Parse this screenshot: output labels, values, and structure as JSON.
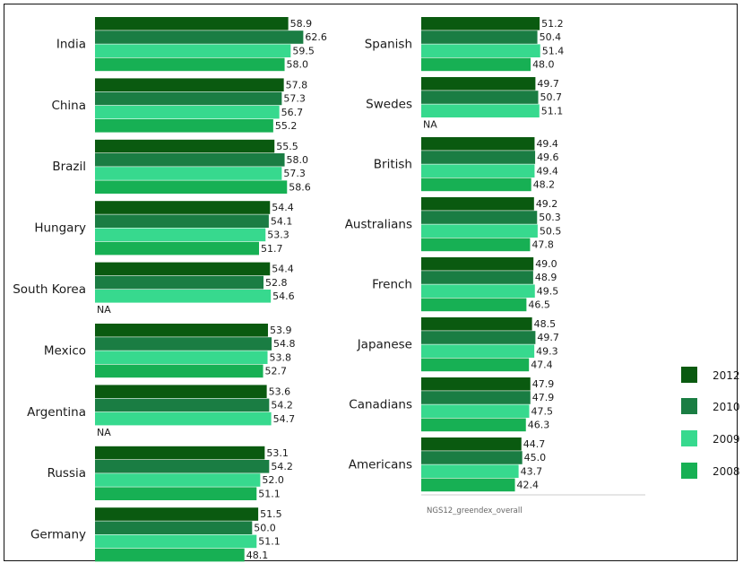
{
  "chart_data": {
    "type": "bar",
    "orientation": "horizontal",
    "source_note": "NGS12_greendex_overall",
    "series_order": [
      "2012",
      "2010",
      "2009",
      "2008"
    ],
    "series_colors": {
      "2012": "#0a5a10",
      "2010": "#1a7d43",
      "2009": "#37d98e",
      "2008": "#17b054"
    },
    "legend": [
      "2012",
      "2010",
      "2009",
      "2008"
    ],
    "legend_colors": [
      "#0a5a10",
      "#1a7d43",
      "#37d98e",
      "#17b054"
    ],
    "legend_position": "right",
    "na_label": "NA",
    "panels": [
      {
        "groups": [
          {
            "category": "India",
            "values": [
              58.9,
              62.6,
              59.5,
              58.0
            ],
            "labels": [
              "58.9",
              "62.6",
              "59.5",
              "58.0"
            ]
          },
          {
            "category": "China",
            "values": [
              57.8,
              57.3,
              56.7,
              55.2
            ],
            "labels": [
              "57.8",
              "57.3",
              "56.7",
              "55.2"
            ]
          },
          {
            "category": "Brazil",
            "values": [
              55.5,
              58.0,
              57.3,
              58.6
            ],
            "labels": [
              "55.5",
              "58.0",
              "57.3",
              "58.6"
            ]
          },
          {
            "category": "Hungary",
            "values": [
              54.4,
              54.1,
              53.3,
              51.7
            ],
            "labels": [
              "54.4",
              "54.1",
              "53.3",
              "51.7"
            ]
          },
          {
            "category": "South Korea",
            "values": [
              54.4,
              52.8,
              54.6,
              null
            ],
            "labels": [
              "54.4",
              "52.8",
              "54.6",
              null
            ]
          },
          {
            "category": "Mexico",
            "values": [
              53.9,
              54.8,
              53.8,
              52.7
            ],
            "labels": [
              "53.9",
              "54.8",
              "53.8",
              "52.7"
            ]
          },
          {
            "category": "Argentina",
            "values": [
              53.6,
              54.2,
              54.7,
              null
            ],
            "labels": [
              "53.6",
              "54.2",
              "54.7",
              null
            ]
          },
          {
            "category": "Russia",
            "values": [
              53.1,
              54.2,
              52.0,
              51.1
            ],
            "labels": [
              "53.1",
              "54.2",
              "52.0",
              "51.1"
            ]
          },
          {
            "category": "Germany",
            "values": [
              51.5,
              50.0,
              51.1,
              48.1
            ],
            "labels": [
              "51.5",
              "50.0",
              "51.1",
              "48.1"
            ]
          }
        ]
      },
      {
        "groups": [
          {
            "category": "Spanish",
            "values": [
              51.2,
              50.4,
              51.4,
              48.0
            ],
            "labels": [
              "51.2",
              "50.4",
              "51.4",
              "48.0"
            ]
          },
          {
            "category": "Swedes",
            "values": [
              49.7,
              50.7,
              51.1,
              null
            ],
            "labels": [
              "49.7",
              "50.7",
              "51.1",
              null
            ]
          },
          {
            "category": "British",
            "values": [
              49.4,
              49.6,
              49.4,
              48.2
            ],
            "labels": [
              "49.4",
              "49.6",
              "49.4",
              "48.2"
            ]
          },
          {
            "category": "Australians",
            "values": [
              49.2,
              50.3,
              50.5,
              47.8
            ],
            "labels": [
              "49.2",
              "50.3",
              "50.5",
              "47.8"
            ]
          },
          {
            "category": "French",
            "values": [
              49.0,
              48.9,
              49.5,
              46.5
            ],
            "labels": [
              "49.0",
              "48.9",
              "49.5",
              "46.5"
            ]
          },
          {
            "category": "Japanese",
            "values": [
              48.5,
              49.7,
              49.3,
              47.4
            ],
            "labels": [
              "48.5",
              "49.7",
              "49.3",
              "47.4"
            ]
          },
          {
            "category": "Canadians",
            "values": [
              47.9,
              47.9,
              47.5,
              46.3
            ],
            "labels": [
              "47.9",
              "47.9",
              "47.5",
              "46.3"
            ]
          },
          {
            "category": "Americans",
            "values": [
              44.7,
              45.0,
              43.7,
              42.4
            ],
            "labels": [
              "44.7",
              "45.0",
              "43.7",
              "42.4"
            ]
          }
        ]
      }
    ]
  }
}
